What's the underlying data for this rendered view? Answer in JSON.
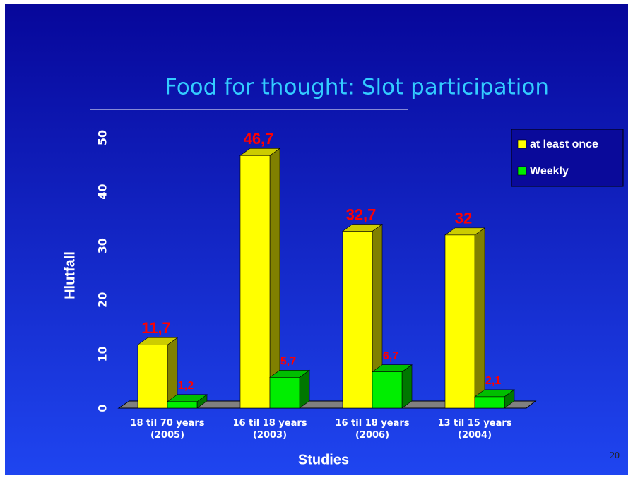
{
  "chart_data": {
    "type": "bar3d",
    "title": "Food for thought: Slot participation",
    "x_label": "Studies",
    "y_label": "Hlutfall",
    "categories": [
      "18 til 70 years (2005)",
      "16 til 18 years (2003)",
      "16 til 18 years (2006)",
      "13 til 15 years (2004)"
    ],
    "series": [
      {
        "name": "at least once",
        "color": "#ffff00",
        "values": [
          11.7,
          46.7,
          32.7,
          32
        ],
        "value_labels": [
          "11,7",
          "46,7",
          "32,7",
          "32"
        ]
      },
      {
        "name": "Weekly",
        "color": "#00ee00",
        "values": [
          1.2,
          5.7,
          6.7,
          2.1
        ],
        "value_labels": [
          "1,2",
          "5,7",
          "6,7",
          "2,1"
        ]
      }
    ],
    "ylim": [
      0,
      50
    ],
    "yticks": [
      0,
      10,
      20,
      30,
      40,
      50
    ],
    "legend": "upper right"
  },
  "slide_number": "20"
}
